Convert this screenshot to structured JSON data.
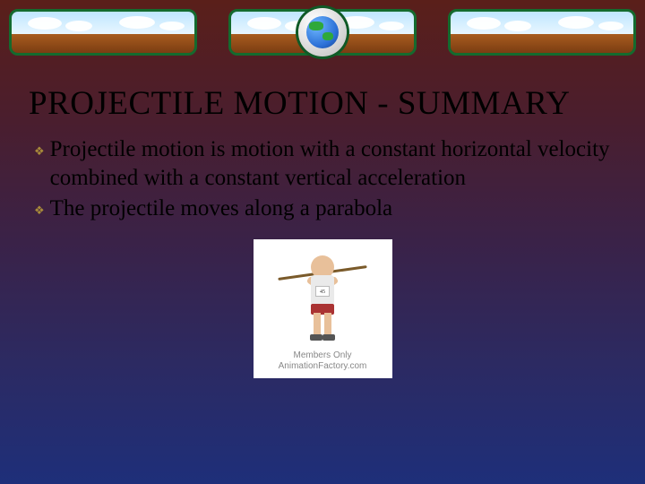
{
  "banner": {
    "border_color": "#146b2e",
    "sky_colors": [
      "#bfe6ff",
      "#e8f6ff"
    ],
    "ground_colors": [
      "#a85c1f",
      "#7b3d12"
    ],
    "globe_colors": {
      "ocean": "#2b6fd6",
      "land": "#2fa83a",
      "ring": "#0f5a26"
    }
  },
  "slide": {
    "title": "PROJECTILE MOTION - SUMMARY",
    "title_color": "#000000",
    "title_fontsize": 37,
    "bullet_glyph": "❖",
    "bullet_color": "#a88a3a",
    "text_color": "#000000",
    "text_fontsize": 25,
    "bullets": [
      "Projectile motion is motion with a constant horizontal velocity combined with a constant vertical acceleration",
      "The projectile moves along a parabola"
    ],
    "background_gradient": [
      "#5a1f1a",
      "#4a1e2e",
      "#3a2248",
      "#2c2a62",
      "#1e2f7a"
    ]
  },
  "clipart": {
    "bib_number": "45",
    "watermark_line1": "Members Only",
    "watermark_line2": "AnimationFactory.com",
    "box_bg": "#ffffff"
  }
}
